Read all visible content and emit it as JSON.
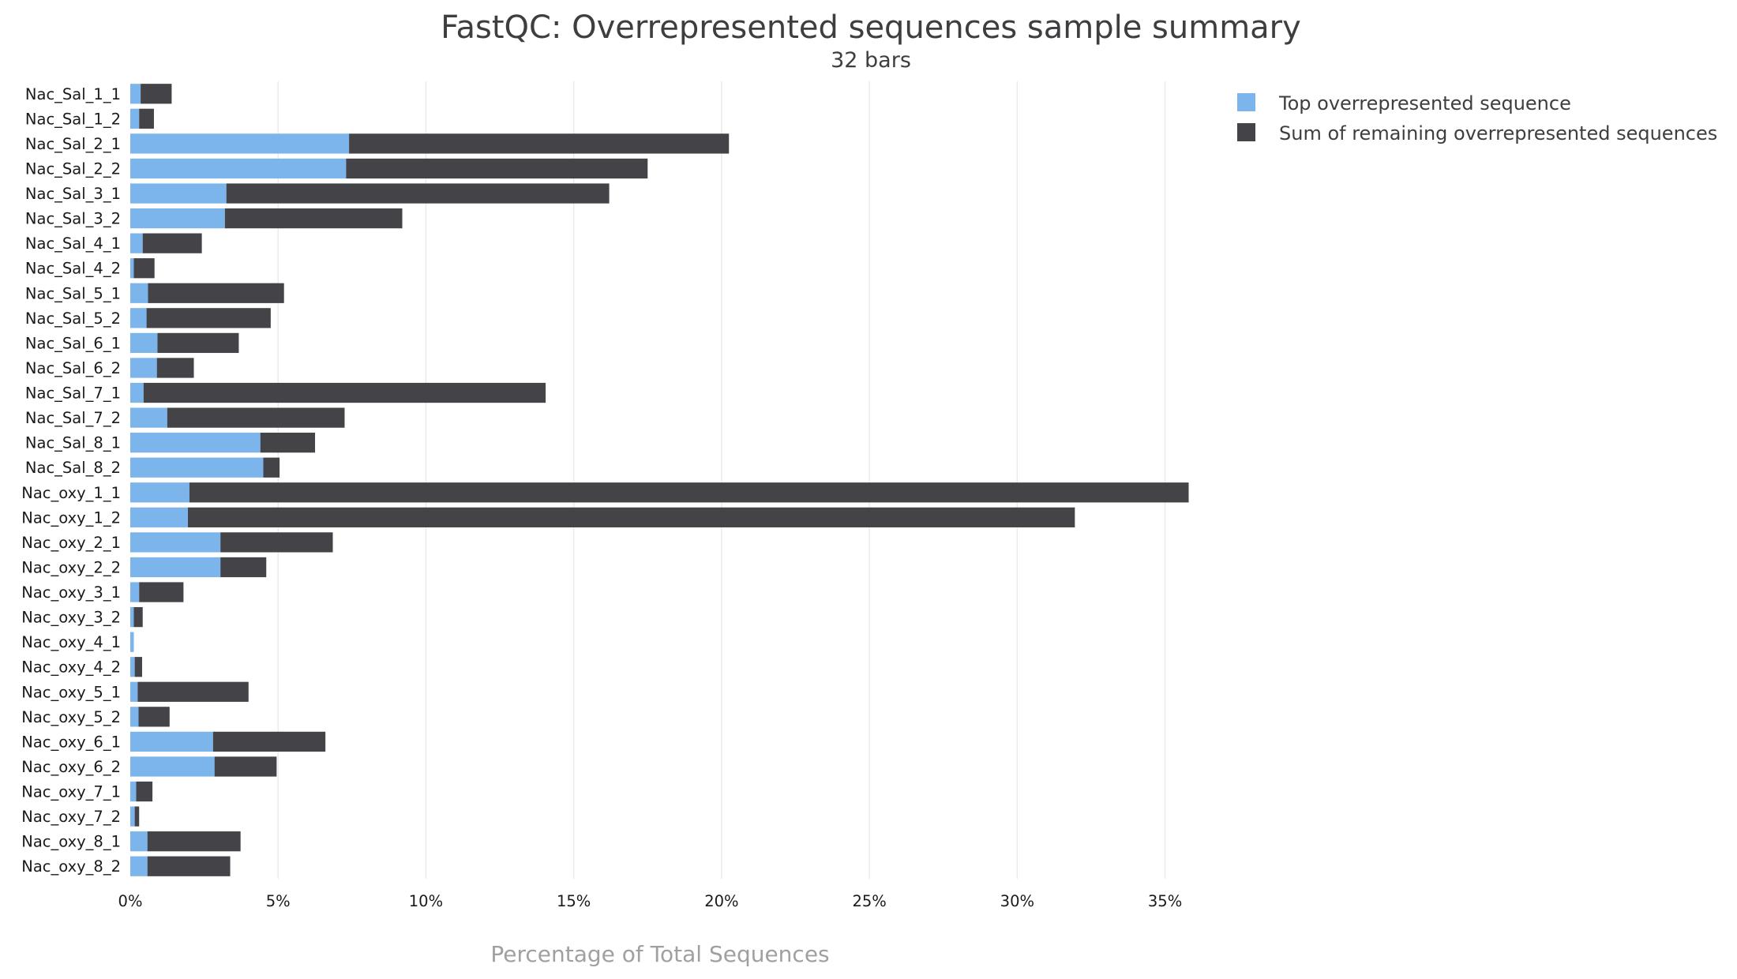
{
  "chart_data": {
    "type": "bar",
    "orientation": "horizontal",
    "stacked": true,
    "title": "FastQC: Overrepresented sequences sample summary",
    "subtitle": "32 bars",
    "xlabel": "Percentage of Total Sequences",
    "xlim": [
      0,
      36
    ],
    "xticks": [
      "0%",
      "5%",
      "10%",
      "15%",
      "20%",
      "25%",
      "30%",
      "35%"
    ],
    "xtick_values": [
      0,
      5,
      10,
      15,
      20,
      25,
      30,
      35
    ],
    "grid": true,
    "legend_position": "top-right",
    "categories": [
      "Nac_Sal_1_1",
      "Nac_Sal_1_2",
      "Nac_Sal_2_1",
      "Nac_Sal_2_2",
      "Nac_Sal_3_1",
      "Nac_Sal_3_2",
      "Nac_Sal_4_1",
      "Nac_Sal_4_2",
      "Nac_Sal_5_1",
      "Nac_Sal_5_2",
      "Nac_Sal_6_1",
      "Nac_Sal_6_2",
      "Nac_Sal_7_1",
      "Nac_Sal_7_2",
      "Nac_Sal_8_1",
      "Nac_Sal_8_2",
      "Nac_oxy_1_1",
      "Nac_oxy_1_2",
      "Nac_oxy_2_1",
      "Nac_oxy_2_2",
      "Nac_oxy_3_1",
      "Nac_oxy_3_2",
      "Nac_oxy_4_1",
      "Nac_oxy_4_2",
      "Nac_oxy_5_1",
      "Nac_oxy_5_2",
      "Nac_oxy_6_1",
      "Nac_oxy_6_2",
      "Nac_oxy_7_1",
      "Nac_oxy_7_2",
      "Nac_oxy_8_1",
      "Nac_oxy_8_2"
    ],
    "series": [
      {
        "name": "Top overrepresented sequence",
        "color": "#7cb5ec",
        "values": [
          0.35,
          0.3,
          7.4,
          7.3,
          3.25,
          3.2,
          0.42,
          0.12,
          0.6,
          0.55,
          0.92,
          0.9,
          0.45,
          1.25,
          4.4,
          4.5,
          2.0,
          1.95,
          3.05,
          3.05,
          0.3,
          0.12,
          0.12,
          0.15,
          0.25,
          0.28,
          2.8,
          2.85,
          0.2,
          0.15,
          0.58,
          0.58
        ]
      },
      {
        "name": "Sum of remaining overrepresented sequences",
        "color": "#434348",
        "values": [
          1.05,
          0.5,
          12.85,
          10.2,
          12.95,
          6.0,
          2.0,
          0.7,
          4.6,
          4.2,
          2.75,
          1.25,
          13.6,
          6.0,
          1.85,
          0.55,
          33.8,
          30.0,
          3.8,
          1.55,
          1.5,
          0.3,
          0.0,
          0.25,
          3.75,
          1.05,
          3.8,
          2.1,
          0.55,
          0.15,
          3.15,
          2.8
        ]
      }
    ]
  }
}
